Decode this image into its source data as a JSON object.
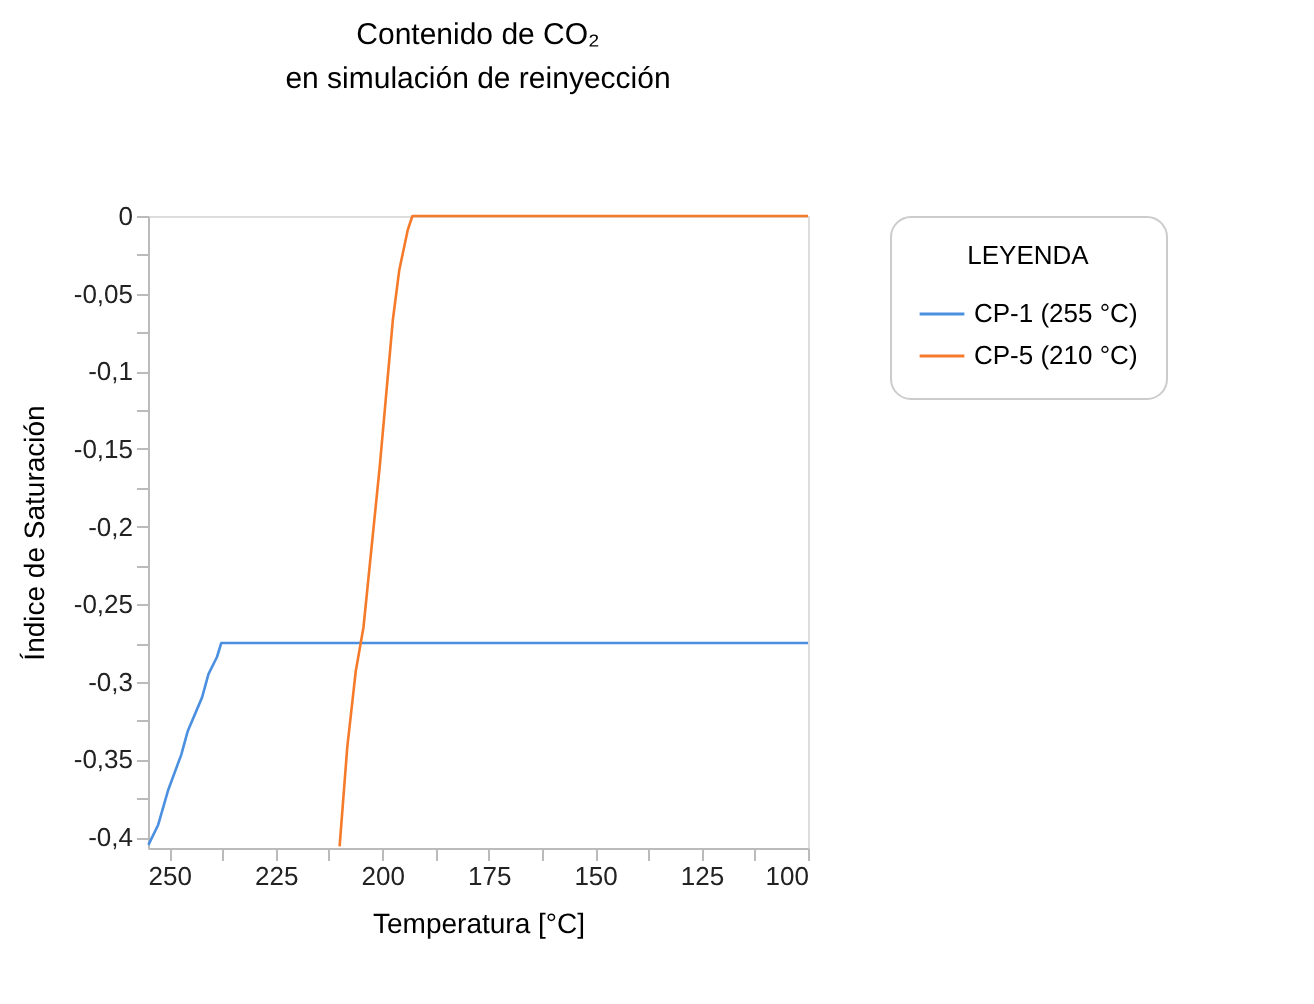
{
  "chart_data": {
    "type": "line",
    "title": "Contenido de CO₂\nen simulación de reinyección",
    "xlabel": "Temperatura [°C]",
    "ylabel": "Índice de Saturación",
    "legend_title": "LEYENDA",
    "legend": "right",
    "grid": false,
    "marker": "none",
    "line_style": "solid",
    "xlim": [
      255,
      100
    ],
    "ylim": [
      -0.407,
      0
    ],
    "xticks": [
      250,
      {
        "value": 237.5,
        "label": null
      },
      225,
      {
        "value": 212.5,
        "label": null
      },
      200,
      {
        "value": 187.5,
        "label": null
      },
      175,
      {
        "value": 162.5,
        "label": null
      },
      150,
      {
        "value": 137.5,
        "label": null
      },
      125,
      {
        "value": 112.5,
        "label": null
      },
      100
    ],
    "yticks": [
      0,
      {
        "value": -0.025,
        "label": null
      },
      {
        "value": -0.05,
        "label": "-0,05"
      },
      {
        "value": -0.075,
        "label": null
      },
      {
        "value": -0.1,
        "label": "-0,1"
      },
      {
        "value": -0.125,
        "label": null
      },
      {
        "value": -0.15,
        "label": "-0,15"
      },
      {
        "value": -0.175,
        "label": null
      },
      {
        "value": -0.2,
        "label": "-0,2"
      },
      {
        "value": -0.225,
        "label": null
      },
      {
        "value": -0.25,
        "label": "-0,25"
      },
      {
        "value": -0.275,
        "label": null
      },
      {
        "value": -0.3,
        "label": "-0,3"
      },
      {
        "value": -0.325,
        "label": null
      },
      {
        "value": -0.35,
        "label": "-0,35"
      },
      {
        "value": -0.375,
        "label": null
      },
      {
        "value": -0.4,
        "label": "-0,4"
      }
    ],
    "series": [
      {
        "name": "CP-1 (255 °C)",
        "color": "#4a8fe0",
        "x": [
          254.9,
          252.6,
          250.3,
          247.2,
          245.7,
          242.3,
          240.8,
          238.8,
          237.8,
          100
        ],
        "values": [
          -0.405,
          -0.392,
          -0.37,
          -0.347,
          -0.332,
          -0.31,
          -0.295,
          -0.284,
          -0.275,
          -0.275
        ]
      },
      {
        "name": "CP-5 (210 °C)",
        "color": "#f57a2a",
        "x": [
          210.0,
          208.2,
          206.2,
          204.4,
          200.6,
          197.5,
          196.0,
          194.0,
          192.9,
          100
        ],
        "values": [
          -0.406,
          -0.342,
          -0.293,
          -0.265,
          -0.162,
          -0.067,
          -0.035,
          -0.009,
          0,
          0
        ]
      }
    ]
  }
}
